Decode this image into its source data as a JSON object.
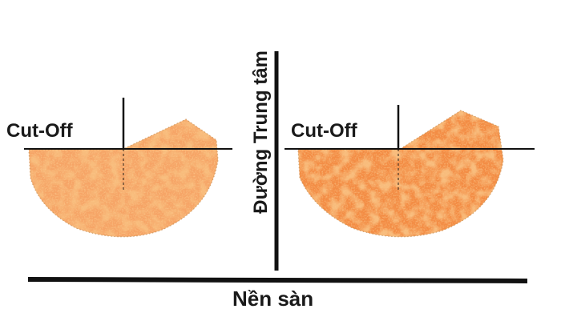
{
  "labels": {
    "cutoff_left": "Cut-Off",
    "cutoff_right": "Cut-Off",
    "floor": "Nền sàn",
    "center_line": "Đường Trung tâm"
  },
  "colors": {
    "beam": "#f08a3c",
    "beam_dark": "#e06a1e",
    "speckle": "#8a6a3a",
    "line": "#111111"
  }
}
